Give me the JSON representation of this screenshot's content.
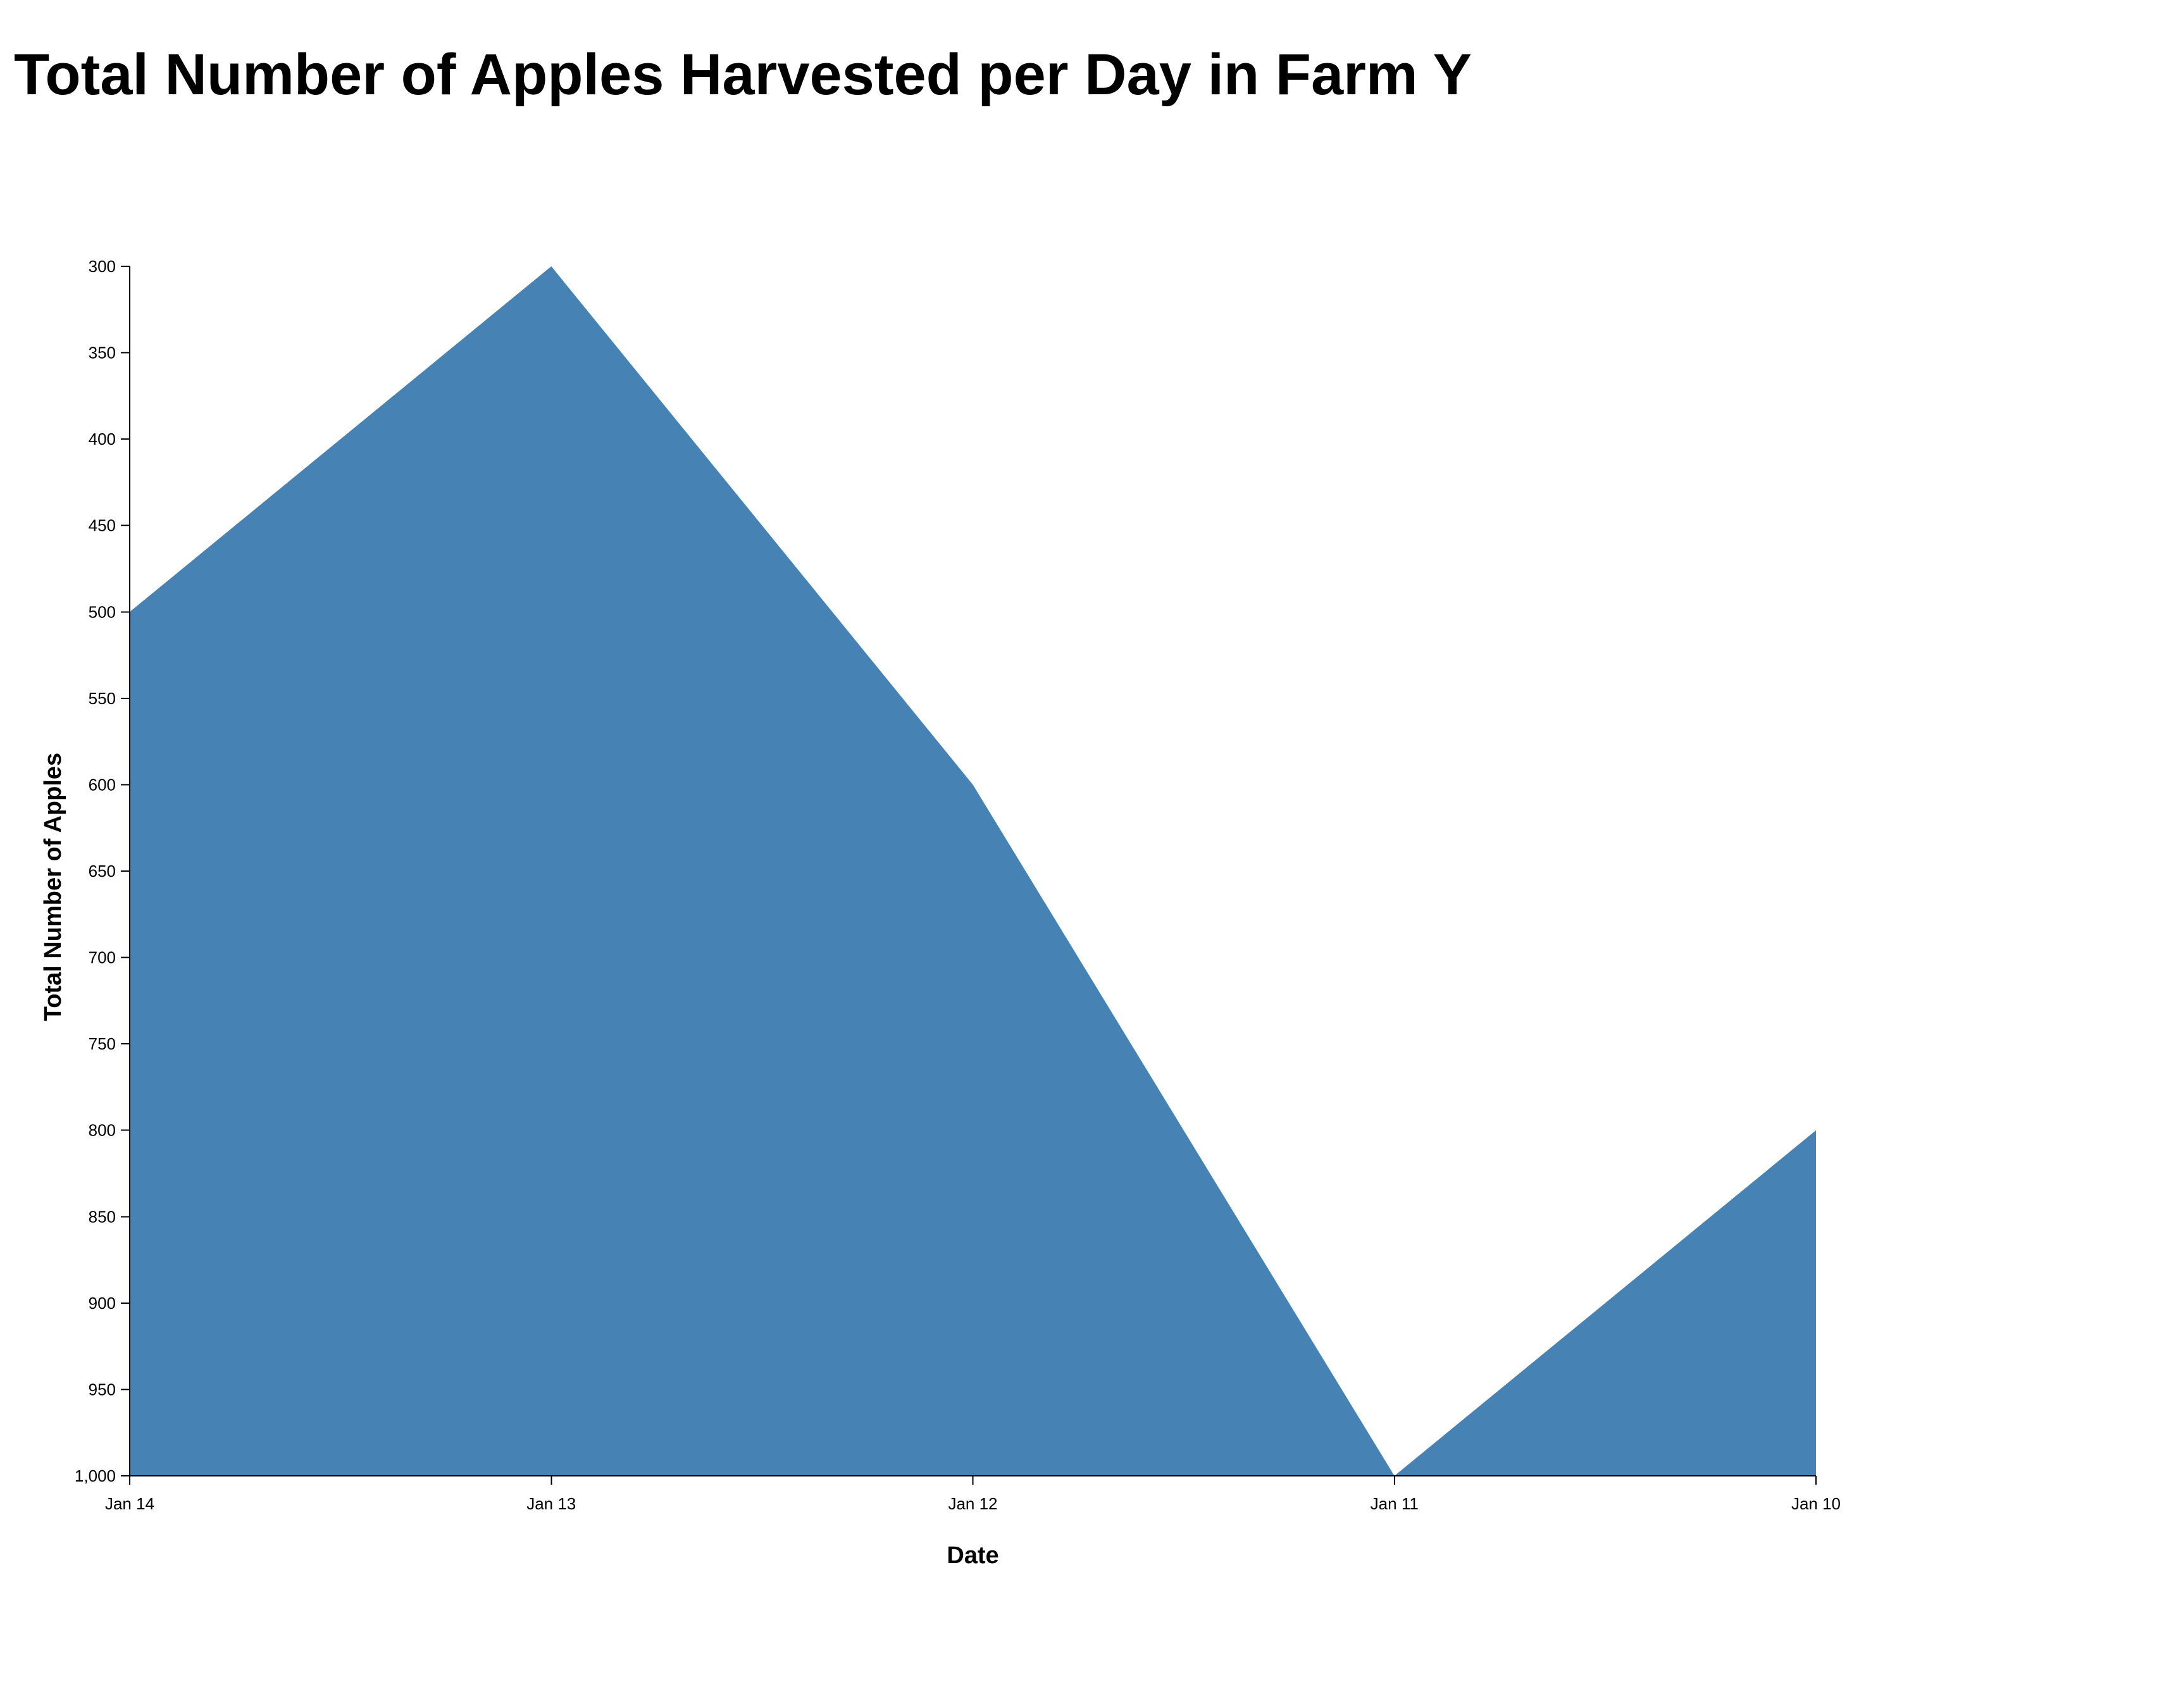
{
  "chart_data": {
    "type": "area",
    "title": "Total Number of Apples Harvested per Day in Farm Y",
    "xlabel": "Date",
    "ylabel": "Total Number of Apples",
    "x": [
      "Jan 14",
      "Jan 13",
      "Jan 12",
      "Jan 11",
      "Jan 10"
    ],
    "values": [
      500,
      300,
      600,
      1000,
      800
    ],
    "yticks": [
      300,
      350,
      400,
      450,
      500,
      550,
      600,
      650,
      700,
      750,
      800,
      850,
      900,
      950,
      1000
    ],
    "ytick_labels": [
      "300",
      "350",
      "400",
      "450",
      "500",
      "550",
      "600",
      "650",
      "700",
      "750",
      "800",
      "850",
      "900",
      "950",
      "1,000"
    ],
    "ylim": [
      300,
      1000
    ],
    "y_axis_reversed": true,
    "x_axis_reversed": true,
    "grid": false,
    "legend": "none",
    "colors": {
      "area": "#4682b4",
      "axis": "#000000"
    }
  }
}
